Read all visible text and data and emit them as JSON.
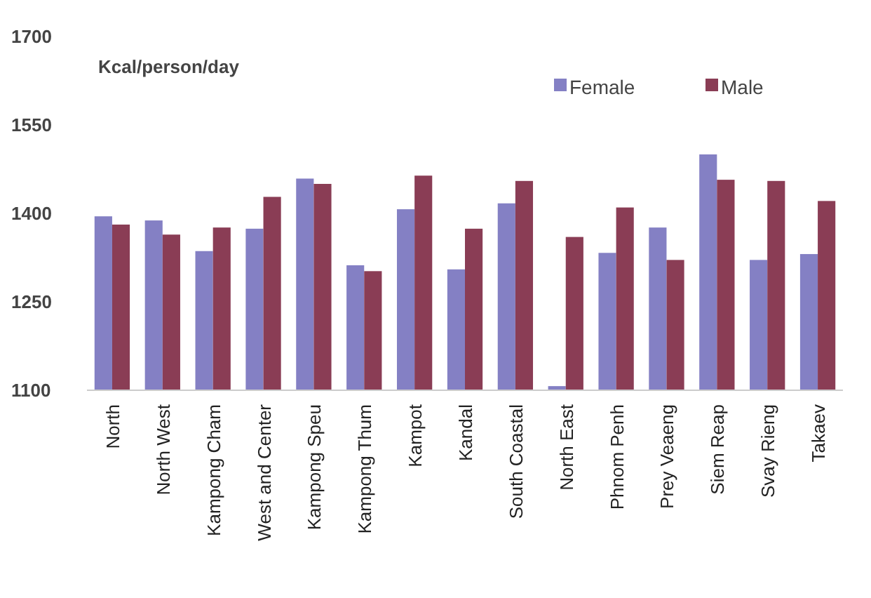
{
  "chart_data": {
    "type": "bar",
    "ylabel": "Kcal/person/day",
    "categories": [
      "North",
      "North West",
      "Kampong Cham",
      "West and Center",
      "Kampong Speu",
      "Kampong Thum",
      "Kampot",
      "Kandal",
      "South Coastal",
      "North East",
      "Phnom Penh",
      "Prey Veaeng",
      "Siem Reap",
      "Svay Rieng",
      "Takaev"
    ],
    "series": [
      {
        "name": "Female",
        "color": "#8480c4",
        "values": [
          1395,
          1388,
          1336,
          1374,
          1459,
          1312,
          1407,
          1305,
          1417,
          1107,
          1333,
          1376,
          1500,
          1321,
          1331
        ]
      },
      {
        "name": "Male",
        "color": "#8a3d55",
        "values": [
          1381,
          1364,
          1376,
          1428,
          1450,
          1302,
          1464,
          1374,
          1455,
          1360,
          1410,
          1321,
          1457,
          1455,
          1421
        ]
      }
    ],
    "ylim": [
      1100,
      1700
    ],
    "yticks": [
      1100,
      1250,
      1400,
      1550,
      1700
    ],
    "legend": "top right",
    "grid": false
  }
}
